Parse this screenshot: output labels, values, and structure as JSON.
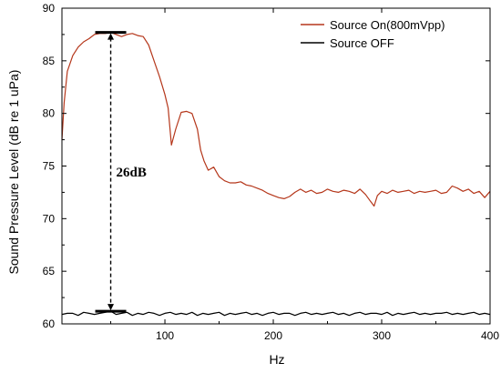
{
  "chart_data": {
    "type": "line",
    "title": "",
    "xlabel": "Hz",
    "ylabel": "Sound Pressure Level (dB re 1 uPa)",
    "xlim": [
      5,
      400
    ],
    "ylim": [
      60,
      90
    ],
    "xticks": [
      100,
      200,
      300,
      400
    ],
    "yticks": [
      60,
      65,
      70,
      75,
      80,
      85,
      90
    ],
    "grid": false,
    "legend": "top-right",
    "series": [
      {
        "name": "Source On(800mVpp)",
        "color": "#b5371b",
        "x": [
          5,
          7,
          10,
          15,
          20,
          25,
          30,
          35,
          40,
          45,
          50,
          55,
          60,
          65,
          70,
          75,
          80,
          85,
          90,
          95,
          100,
          103,
          106,
          110,
          115,
          120,
          125,
          130,
          133,
          136,
          140,
          145,
          150,
          155,
          160,
          165,
          170,
          175,
          180,
          185,
          190,
          195,
          200,
          205,
          210,
          215,
          220,
          225,
          230,
          235,
          240,
          245,
          250,
          255,
          260,
          265,
          270,
          275,
          280,
          285,
          290,
          293,
          296,
          300,
          305,
          310,
          315,
          320,
          325,
          330,
          335,
          340,
          345,
          350,
          355,
          360,
          365,
          370,
          375,
          380,
          385,
          390,
          395,
          400
        ],
        "y": [
          77.5,
          81,
          84,
          85.5,
          86.3,
          86.8,
          87.1,
          87.5,
          87.6,
          87.6,
          87.7,
          87.5,
          87.3,
          87.5,
          87.6,
          87.4,
          87.3,
          86.5,
          85,
          83.5,
          81.8,
          80.5,
          77,
          78.5,
          80.1,
          80.2,
          80,
          78.5,
          76.5,
          75.5,
          74.6,
          74.9,
          74,
          73.6,
          73.4,
          73.4,
          73.5,
          73.2,
          73.1,
          72.9,
          72.7,
          72.4,
          72.2,
          72,
          71.9,
          72.1,
          72.5,
          72.8,
          72.5,
          72.7,
          72.4,
          72.5,
          72.8,
          72.6,
          72.5,
          72.7,
          72.6,
          72.4,
          72.8,
          72.3,
          71.6,
          71.2,
          72.2,
          72.6,
          72.4,
          72.7,
          72.5,
          72.6,
          72.7,
          72.4,
          72.6,
          72.5,
          72.6,
          72.7,
          72.4,
          72.5,
          73.1,
          72.9,
          72.6,
          72.8,
          72.4,
          72.6,
          72,
          72.6
        ]
      },
      {
        "name": "Source OFF",
        "color": "#000000",
        "x": [
          5,
          10,
          15,
          20,
          25,
          30,
          35,
          40,
          45,
          50,
          55,
          60,
          65,
          70,
          75,
          80,
          85,
          90,
          95,
          100,
          105,
          110,
          115,
          120,
          125,
          130,
          135,
          140,
          145,
          150,
          155,
          160,
          165,
          170,
          175,
          180,
          185,
          190,
          195,
          200,
          205,
          210,
          215,
          220,
          225,
          230,
          235,
          240,
          245,
          250,
          255,
          260,
          265,
          270,
          275,
          280,
          285,
          290,
          295,
          300,
          305,
          310,
          315,
          320,
          325,
          330,
          335,
          340,
          345,
          350,
          355,
          360,
          365,
          370,
          375,
          380,
          385,
          390,
          395,
          400
        ],
        "y": [
          60.9,
          61.0,
          61.0,
          60.8,
          61.1,
          61.0,
          60.9,
          61.0,
          61.1,
          61.2,
          60.9,
          61.0,
          61.1,
          60.8,
          61.0,
          60.9,
          61.1,
          61.0,
          60.8,
          61.0,
          61.1,
          60.9,
          61.0,
          60.9,
          61.1,
          60.8,
          61.0,
          60.9,
          61.0,
          61.1,
          60.8,
          61.0,
          60.9,
          61.0,
          61.1,
          60.9,
          61.0,
          60.8,
          61.0,
          61.1,
          60.9,
          61.0,
          61.0,
          60.8,
          61.0,
          61.1,
          60.9,
          61.0,
          60.9,
          61.0,
          61.1,
          60.9,
          61.0,
          60.8,
          61.0,
          61.1,
          60.9,
          61.0,
          61.0,
          60.9,
          61.1,
          60.8,
          61.0,
          60.9,
          61.0,
          61.1,
          60.9,
          61.0,
          60.9,
          61.0,
          61.0,
          61.1,
          60.9,
          61.0,
          60.9,
          61.0,
          61.1,
          60.9,
          61.0,
          60.9
        ]
      }
    ],
    "annotation": {
      "text": "26dB",
      "x": 50,
      "y_top": 87.7,
      "y_bottom": 61.2
    }
  }
}
